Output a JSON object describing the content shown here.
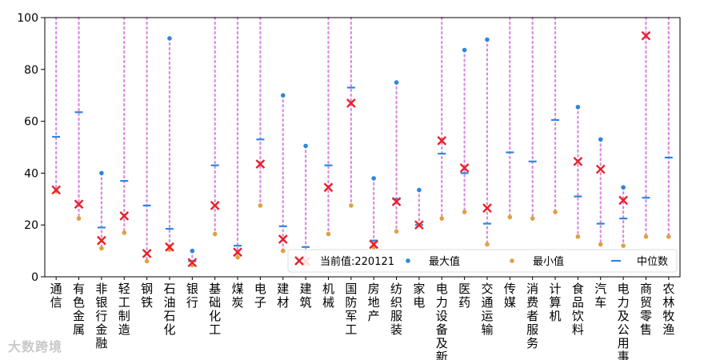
{
  "chart_data": {
    "type": "scatter",
    "title": "",
    "xlabel": "",
    "ylabel": "",
    "ylim": [
      0,
      100
    ],
    "yticks": [
      0,
      20,
      40,
      60,
      80,
      100
    ],
    "grid": false,
    "legend_position": "bottom-right",
    "categories": [
      "通信",
      "有色金属",
      "非银行金融",
      "轻工制造",
      "钢铁",
      "石油石化",
      "银行",
      "基础化工",
      "煤炭",
      "电子",
      "建材",
      "建筑",
      "机械",
      "国防军工",
      "房地产",
      "纺织服装",
      "家电",
      "电力设备及新能源",
      "医药",
      "交通运输",
      "传媒",
      "消费者服务",
      "计算机",
      "食品饮料",
      "汽车",
      "电力及公用事业",
      "商贸零售",
      "农林牧渔"
    ],
    "series": [
      {
        "name": "当前值:220121",
        "marker": "x",
        "color": "#e8202a",
        "values": [
          33.5,
          28,
          14,
          23.5,
          9,
          11.5,
          5.5,
          27.5,
          9.5,
          43.5,
          14.5,
          6,
          34.5,
          67,
          12.5,
          29,
          20,
          52.5,
          42,
          26.5,
          null,
          null,
          null,
          44.5,
          41.5,
          29.5,
          93,
          null
        ]
      },
      {
        "name": "最大值",
        "marker": "dot",
        "color": "#2e86de",
        "values": [
          100,
          100,
          40,
          100,
          100,
          92,
          10,
          100,
          100,
          100,
          70,
          50.5,
          100,
          100,
          38,
          75,
          33.5,
          100,
          87.5,
          91.5,
          100,
          100,
          100,
          65.5,
          53,
          34.5,
          100,
          100
        ]
      },
      {
        "name": "最小值",
        "marker": "dot",
        "color": "#e0a040",
        "values": [
          33,
          22.5,
          11,
          17,
          6,
          10.5,
          4.5,
          16.5,
          7.5,
          27.5,
          10,
          5,
          16.5,
          27.5,
          11.5,
          17.5,
          20,
          22.5,
          25,
          12.5,
          23,
          22.5,
          25,
          15.5,
          12.5,
          12,
          15.5,
          15.5
        ]
      },
      {
        "name": "中位数",
        "marker": "dash",
        "color": "#2e86de",
        "values": [
          54,
          63.5,
          19,
          37,
          27.5,
          18.5,
          6,
          43,
          12,
          53,
          19.5,
          11.5,
          43,
          73,
          14,
          30,
          20,
          47.5,
          40,
          20.5,
          48,
          44.5,
          60.5,
          31,
          20.5,
          22.5,
          30.5,
          46
        ]
      }
    ]
  },
  "watermark": "大数跨境"
}
